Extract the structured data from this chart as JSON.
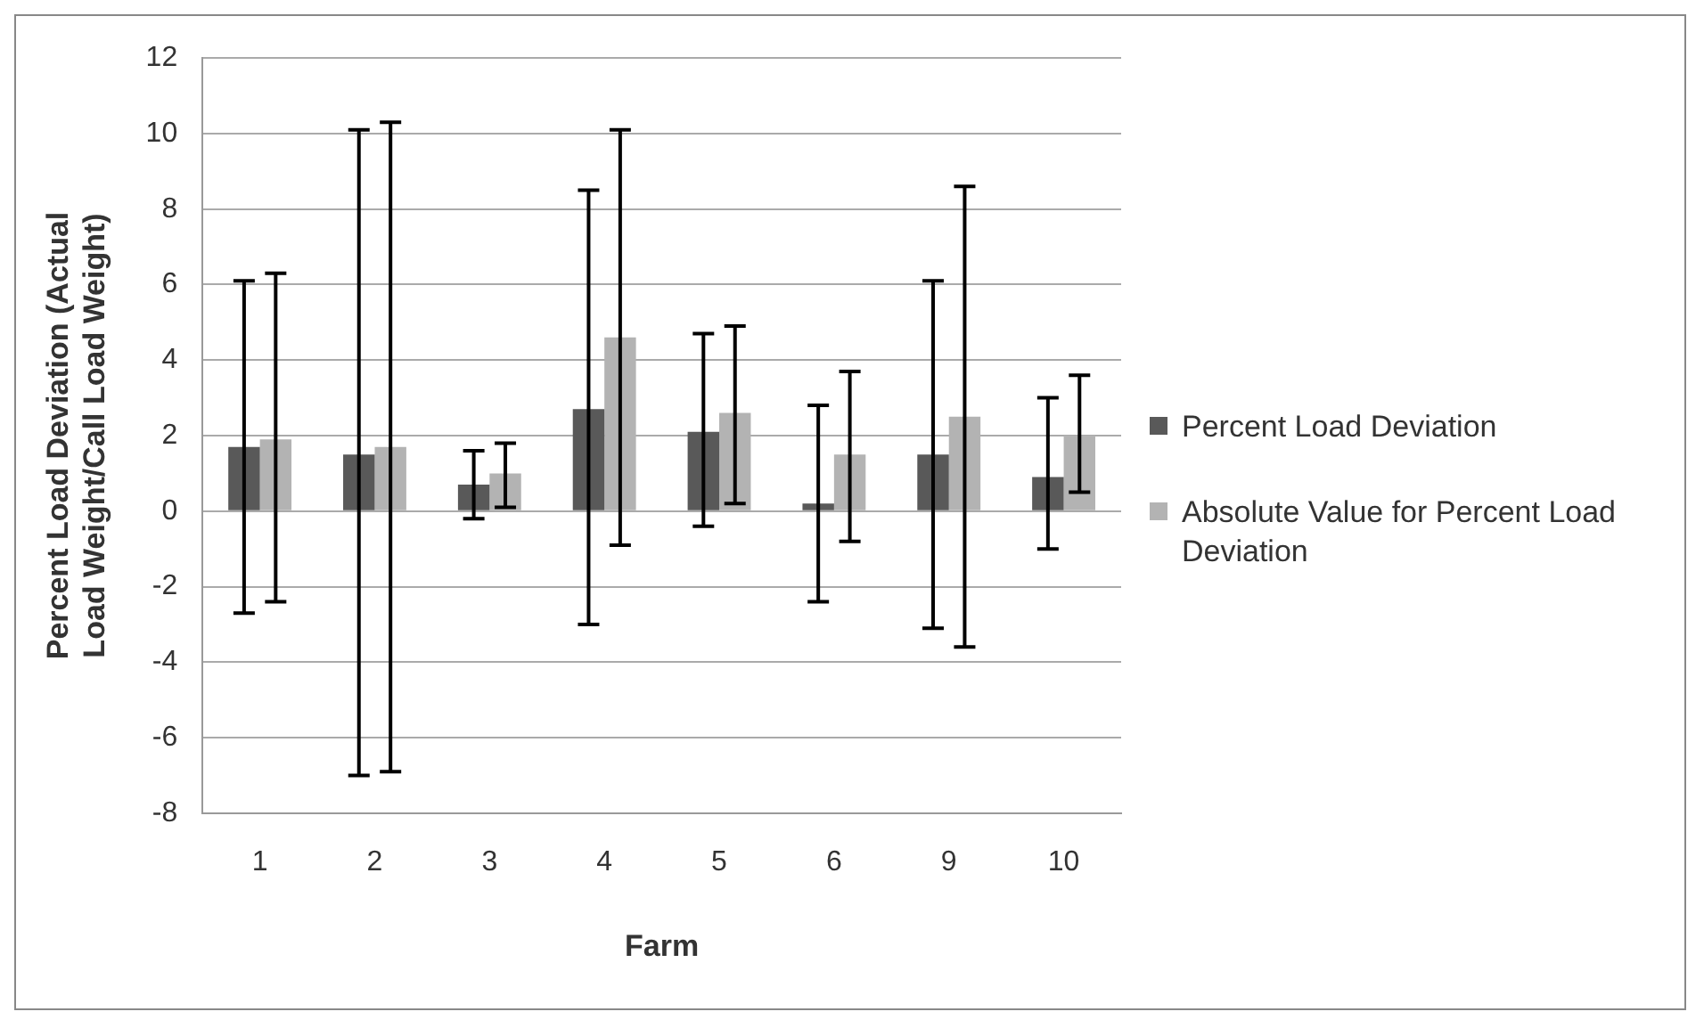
{
  "chart_data": {
    "type": "bar",
    "xlabel": "Farm",
    "ylabel": "Percent Load Deviation (Actual Load Weight/Call Load Weight)",
    "categories": [
      "1",
      "2",
      "3",
      "4",
      "5",
      "6",
      "9",
      "10"
    ],
    "series": [
      {
        "name": "Percent Load Deviation",
        "color": "#595959",
        "values": [
          1.7,
          1.5,
          0.7,
          2.7,
          2.1,
          0.2,
          1.5,
          0.9
        ],
        "errors": [
          [
            -2.7,
            6.1
          ],
          [
            -7.0,
            10.1
          ],
          [
            -0.2,
            1.6
          ],
          [
            -3.0,
            8.5
          ],
          [
            -0.4,
            4.7
          ],
          [
            -2.4,
            2.8
          ],
          [
            -3.1,
            6.1
          ],
          [
            -1.0,
            3.0
          ]
        ]
      },
      {
        "name": "Absolute Value for Percent Load Deviation",
        "color": "#b3b3b3",
        "values": [
          1.9,
          1.7,
          1.0,
          4.6,
          2.6,
          1.5,
          2.5,
          2.0
        ],
        "errors": [
          [
            -2.4,
            6.3
          ],
          [
            -6.9,
            10.3
          ],
          [
            0.1,
            1.8
          ],
          [
            -0.9,
            10.1
          ],
          [
            0.2,
            4.9
          ],
          [
            -0.8,
            3.7
          ],
          [
            -3.6,
            8.6
          ],
          [
            0.5,
            3.6
          ]
        ]
      }
    ],
    "ylim": [
      -8,
      12
    ],
    "yticks": [
      -8,
      -6,
      -4,
      -2,
      0,
      2,
      4,
      6,
      8,
      10,
      12
    ],
    "grid": "y",
    "legend": "right"
  }
}
